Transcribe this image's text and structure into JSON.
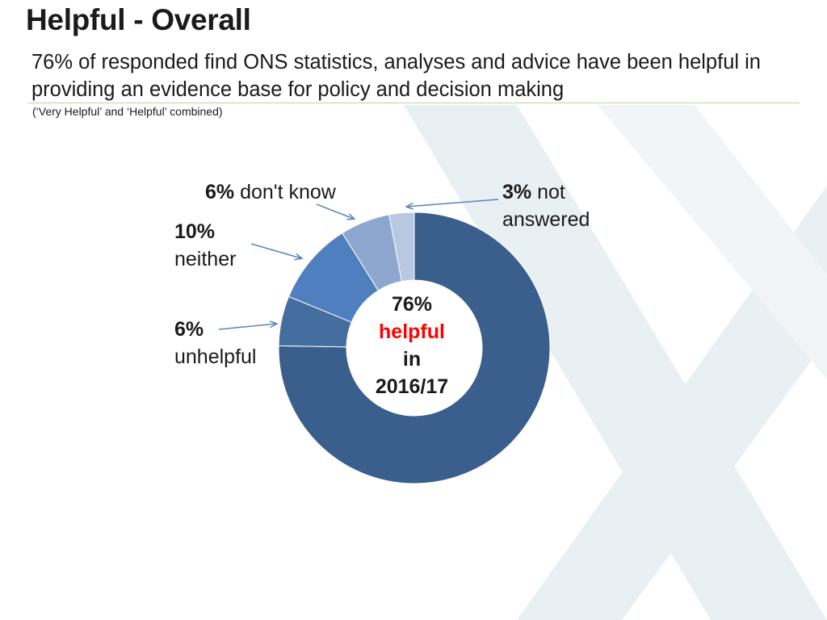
{
  "slide": {
    "title": "Helpful - Overall",
    "subtitle": "76% of responded find ONS statistics, analyses and advice have been helpful in providing an evidence base for policy and decision making",
    "note": "(‘Very Helpful’ and ‘Helpful’ combined)"
  },
  "labels": {
    "dont_know_pct": "6%",
    "dont_know_text": "don't know",
    "not_answered_pct": "3%",
    "not_answered_text1": "not",
    "not_answered_text2": "answered",
    "neither_pct": "10%",
    "neither_text": "neither",
    "unhelpful_pct": "6%",
    "unhelpful_text": "unhelpful"
  },
  "center": {
    "line1": "76%",
    "line2": "helpful",
    "line3": "in",
    "line4": "2016/17"
  },
  "colors": {
    "helpful": "#3a5f8c",
    "unhelpful": "#456da0",
    "neither": "#4f7fbe",
    "dont_know": "#8ea7cf",
    "not_answered": "#b9c8e1",
    "accent_red": "#ff0000",
    "background_x": "#e9f0f3",
    "arrow": "#5b86b8"
  },
  "chart_data": {
    "type": "pie",
    "variant": "donut",
    "slices": [
      {
        "label": "helpful",
        "value": 76,
        "color": "#3a5f8c"
      },
      {
        "label": "unhelpful",
        "value": 6,
        "color": "#456da0"
      },
      {
        "label": "neither",
        "value": 10,
        "color": "#4f7fbe"
      },
      {
        "label": "don't know",
        "value": 6,
        "color": "#8ea7cf"
      },
      {
        "label": "not answered",
        "value": 3,
        "color": "#b9c8e1"
      }
    ],
    "legend": "none",
    "start": "top, clockwise"
  }
}
